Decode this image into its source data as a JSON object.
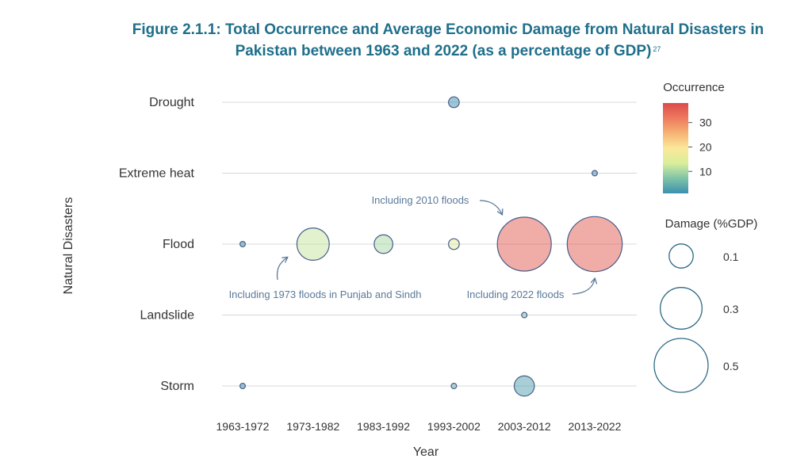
{
  "title": "Figure 2.1.1: Total Occurrence and Average Economic Damage from Natural Disasters in Pakistan between 1963 and 2022 (as a percentage of GDP)",
  "title_footnote": "27",
  "chart_data": {
    "type": "scatter",
    "subtype": "bubble",
    "xlabel": "Year",
    "ylabel": "Natural Disasters",
    "x_categories": [
      "1963-1972",
      "1973-1982",
      "1983-1992",
      "1993-2002",
      "2003-2012",
      "2013-2022"
    ],
    "y_categories": [
      "Drought",
      "Extreme heat",
      "Flood",
      "Landslide",
      "Storm"
    ],
    "grid": "horizontal",
    "points": [
      {
        "disaster": "Drought",
        "period": "1993-2002",
        "occurrence": 1,
        "damage": 0.02
      },
      {
        "disaster": "Extreme heat",
        "period": "2013-2022",
        "occurrence": 1,
        "damage": 0.005
      },
      {
        "disaster": "Flood",
        "period": "1963-1972",
        "occurrence": 1,
        "damage": 0.005
      },
      {
        "disaster": "Flood",
        "period": "1973-1982",
        "occurrence": 12,
        "damage": 0.18
      },
      {
        "disaster": "Flood",
        "period": "1983-1992",
        "occurrence": 10,
        "damage": 0.06
      },
      {
        "disaster": "Flood",
        "period": "1993-2002",
        "occurrence": 15,
        "damage": 0.02
      },
      {
        "disaster": "Flood",
        "period": "2003-2012",
        "occurrence": 36,
        "damage": 0.5
      },
      {
        "disaster": "Flood",
        "period": "2013-2022",
        "occurrence": 36,
        "damage": 0.52
      },
      {
        "disaster": "Landslide",
        "period": "2003-2012",
        "occurrence": 7,
        "damage": 0.005
      },
      {
        "disaster": "Storm",
        "period": "1963-1972",
        "occurrence": 1,
        "damage": 0.005
      },
      {
        "disaster": "Storm",
        "period": "1993-2002",
        "occurrence": 5,
        "damage": 0.003
      },
      {
        "disaster": "Storm",
        "period": "2003-2012",
        "occurrence": 3,
        "damage": 0.07
      }
    ],
    "color_legend": {
      "title": "Occurrence",
      "ticks": [
        "10",
        "20",
        "30"
      ],
      "tick_values": [
        10,
        20,
        30
      ],
      "range": [
        1,
        38
      ],
      "colors": [
        "#3b8fb0",
        "#7fc3a8",
        "#d9ee9b",
        "#fbe89a",
        "#f6b374",
        "#ee7a5e",
        "#dc4a4a"
      ]
    },
    "size_legend": {
      "title": "Damage (%GDP)",
      "values": [
        0.1,
        0.3,
        0.5
      ],
      "labels": [
        "0.1",
        "0.3",
        "0.5"
      ]
    },
    "annotations": [
      {
        "text": "Including 1973 floods in Punjab and Sindh",
        "disaster": "Flood",
        "period": "1973-1982"
      },
      {
        "text": "Including 2010 floods",
        "disaster": "Flood",
        "period": "2003-2012"
      },
      {
        "text": "Including 2022 floods",
        "disaster": "Flood",
        "period": "2013-2022"
      }
    ]
  }
}
